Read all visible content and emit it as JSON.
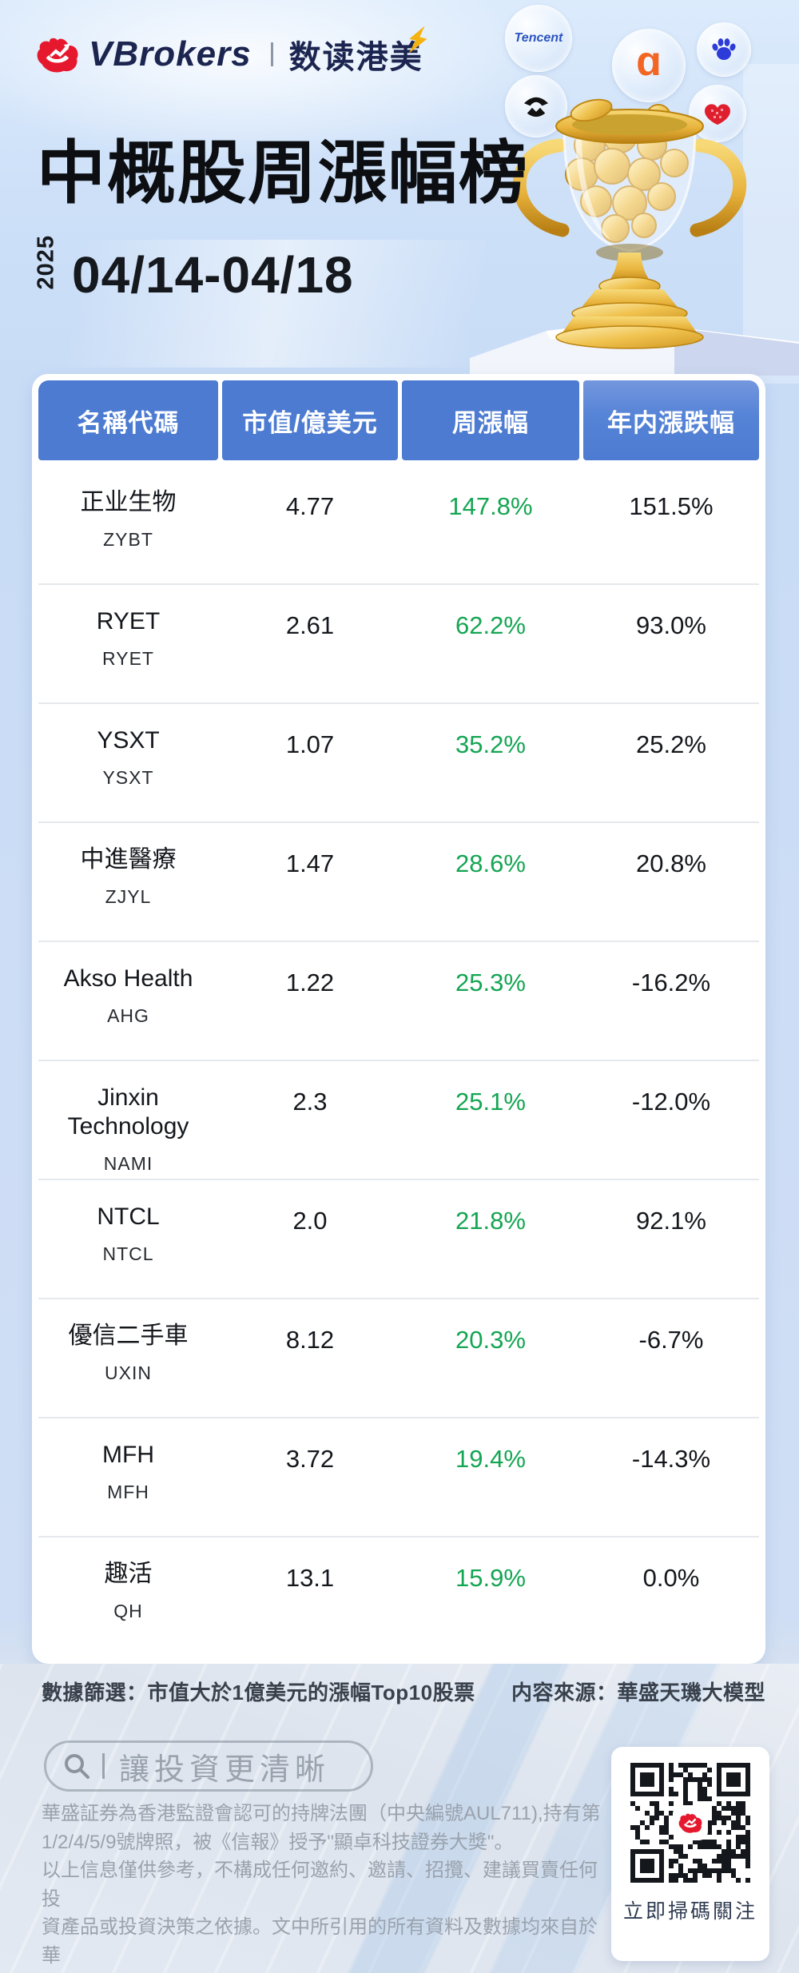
{
  "brand": {
    "name": "VBrokers",
    "divider": "|",
    "badge": "数读港美"
  },
  "header": {
    "title": "中概股周漲幅榜",
    "year": "2025",
    "date_range": "04/14-04/18"
  },
  "bubbles": {
    "tencent_label": "Tencent",
    "alibaba_glyph": "ɑ"
  },
  "chart_data": {
    "type": "table",
    "title": "中概股周漲幅榜",
    "period": "2025 04/14-04/18",
    "columns": [
      "名稱代碼",
      "市值/億美元",
      "周漲幅",
      "年内漲跌幅"
    ],
    "rows": [
      {
        "name": "正业生物",
        "ticker": "ZYBT",
        "market_cap": "4.77",
        "weekly_change": "147.8%",
        "ytd_change": "151.5%"
      },
      {
        "name": "RYET",
        "ticker": "RYET",
        "market_cap": "2.61",
        "weekly_change": "62.2%",
        "ytd_change": "93.0%"
      },
      {
        "name": "YSXT",
        "ticker": "YSXT",
        "market_cap": "1.07",
        "weekly_change": "35.2%",
        "ytd_change": "25.2%"
      },
      {
        "name": "中進醫療",
        "ticker": "ZJYL",
        "market_cap": "1.47",
        "weekly_change": "28.6%",
        "ytd_change": "20.8%"
      },
      {
        "name": "Akso Health",
        "ticker": "AHG",
        "market_cap": "1.22",
        "weekly_change": "25.3%",
        "ytd_change": "-16.2%"
      },
      {
        "name": "Jinxin Technology",
        "ticker": "NAMI",
        "market_cap": "2.3",
        "weekly_change": "25.1%",
        "ytd_change": "-12.0%"
      },
      {
        "name": "NTCL",
        "ticker": "NTCL",
        "market_cap": "2.0",
        "weekly_change": "21.8%",
        "ytd_change": "92.1%"
      },
      {
        "name": "優信二手車",
        "ticker": "UXIN",
        "market_cap": "8.12",
        "weekly_change": "20.3%",
        "ytd_change": "-6.7%"
      },
      {
        "name": "MFH",
        "ticker": "MFH",
        "market_cap": "3.72",
        "weekly_change": "19.4%",
        "ytd_change": "-14.3%"
      },
      {
        "name": "趣活",
        "ticker": "QH",
        "market_cap": "13.1",
        "weekly_change": "15.9%",
        "ytd_change": "0.0%"
      }
    ],
    "legend_position": "none",
    "grid": "row-separators"
  },
  "footer": {
    "filter_note": "數據篩選：市值大於1億美元的漲幅Top10股票",
    "source_note": "内容來源：華盛天璣大模型"
  },
  "search": {
    "text": "讓投資更清晰"
  },
  "disclaimer": {
    "text": "華盛証券為香港監證會認可的持牌法團（中央編號AUL711),持有第\n1/2/4/5/9號牌照，被《信報》授予\"顯卓科技證券大獎\"。\n以上信息僅供參考，不構成任何邀約、邀請、招攬、建議買賣任何投\n資產品或投資決策之依據。文中所引用的所有資料及數據均來自於華\n盛通認為可靠的來源，但概不保證此等資料的準確性、正確性或完整\n性，亦一概不就任何人因使用文中或其他內容而產生的任何後果。"
  },
  "qr": {
    "cta": "立即掃碼關注"
  },
  "colors": {
    "header_blue": "#4c7bd1",
    "gain_green": "#14a553",
    "brand_navy": "#1b2550",
    "brand_red": "#e6182e",
    "gold": "#e8b33c"
  }
}
